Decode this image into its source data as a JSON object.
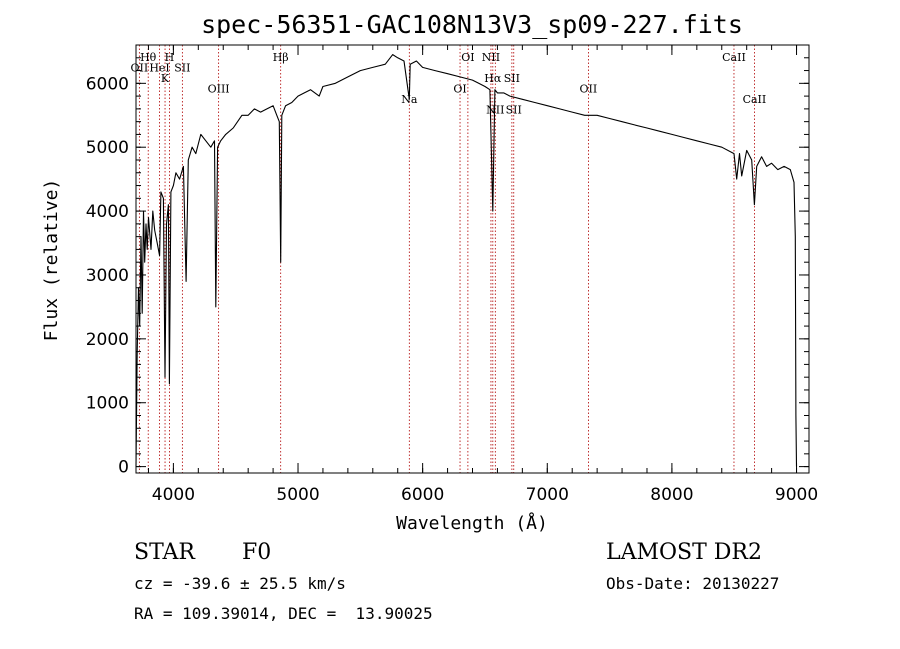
{
  "chart_data": {
    "type": "line",
    "title": "spec-56351-GAC108N13V3_sp09-227.fits",
    "xlabel": "Wavelength (Å)",
    "ylabel": "Flux (relative)",
    "xlim": [
      3700,
      9100
    ],
    "ylim": [
      -100,
      6600
    ],
    "x_ticks": [
      4000,
      5000,
      6000,
      7000,
      8000,
      9000
    ],
    "y_ticks": [
      0,
      1000,
      2000,
      3000,
      4000,
      5000,
      6000
    ],
    "minor_x_step": 200,
    "minor_y_step": 200,
    "line_color": "#000000",
    "marker_color": "#b00000",
    "series": [
      {
        "x": [
          3700,
          3710,
          3720,
          3730,
          3740,
          3750,
          3760,
          3770,
          3780,
          3790,
          3800,
          3820,
          3835,
          3850,
          3870,
          3889,
          3900,
          3920,
          3933,
          3945,
          3960,
          3968,
          3980,
          4000,
          4020,
          4050,
          4080,
          4102,
          4120,
          4150,
          4180,
          4220,
          4260,
          4300,
          4330,
          4340,
          4355,
          4380,
          4420,
          4480,
          4550,
          4600,
          4650,
          4700,
          4750,
          4800,
          4830,
          4850,
          4861,
          4870,
          4900,
          4950,
          5000,
          5050,
          5100,
          5170,
          5200,
          5300,
          5400,
          5500,
          5600,
          5700,
          5760,
          5800,
          5850,
          5893,
          5900,
          5950,
          6000,
          6100,
          6200,
          6300,
          6400,
          6450,
          6500,
          6540,
          6563,
          6580,
          6600,
          6650,
          6700,
          6800,
          6900,
          7000,
          7100,
          7200,
          7300,
          7400,
          7500,
          7600,
          7700,
          7800,
          7900,
          8000,
          8100,
          8200,
          8300,
          8400,
          8498,
          8520,
          8542,
          8560,
          8600,
          8640,
          8662,
          8680,
          8720,
          8760,
          8800,
          8850,
          8900,
          8950,
          8980,
          8990,
          8995,
          9000
        ],
        "y": [
          0,
          1800,
          2800,
          2200,
          3600,
          2400,
          4000,
          3200,
          3800,
          3400,
          3900,
          3400,
          4000,
          3700,
          3500,
          3300,
          4300,
          4200,
          1400,
          3800,
          4100,
          1300,
          4300,
          4400,
          4600,
          4500,
          4700,
          2900,
          4800,
          5000,
          4900,
          5200,
          5100,
          5000,
          5100,
          2500,
          5000,
          5100,
          5200,
          5300,
          5500,
          5500,
          5600,
          5550,
          5600,
          5650,
          5500,
          5400,
          3200,
          5500,
          5650,
          5700,
          5800,
          5850,
          5900,
          5800,
          5950,
          6000,
          6100,
          6200,
          6250,
          6300,
          6450,
          6400,
          6350,
          5750,
          6300,
          6350,
          6250,
          6200,
          6150,
          6100,
          6050,
          6000,
          5950,
          5900,
          4000,
          5900,
          5850,
          5850,
          5800,
          5750,
          5700,
          5650,
          5600,
          5550,
          5500,
          5500,
          5450,
          5400,
          5350,
          5300,
          5250,
          5200,
          5150,
          5100,
          5050,
          5000,
          4900,
          4500,
          4900,
          4550,
          4950,
          4800,
          4100,
          4700,
          4850,
          4700,
          4750,
          4650,
          4700,
          4650,
          4450,
          3600,
          800,
          0
        ]
      }
    ],
    "lines": [
      {
        "name": "Hθ",
        "x": 3798,
        "row": 0
      },
      {
        "name": "OII",
        "x": 3727,
        "row": 1
      },
      {
        "name": "H",
        "x": 3968,
        "row": 0
      },
      {
        "name": "K",
        "x": 3933,
        "row": 2
      },
      {
        "name": "HeI",
        "x": 3889,
        "row": 1
      },
      {
        "name": "SII",
        "x": 4072,
        "row": 1
      },
      {
        "name": "OIII",
        "x": 4363,
        "row": 3
      },
      {
        "name": "Hβ",
        "x": 4861,
        "row": 0
      },
      {
        "name": "Na",
        "x": 5893,
        "row": 4
      },
      {
        "name": "OI",
        "x": 6300,
        "row": 3
      },
      {
        "name": "OI",
        "x": 6363,
        "row": 0
      },
      {
        "name": "NII",
        "x": 6548,
        "row": 0
      },
      {
        "name": "Hα",
        "x": 6563,
        "row": 2
      },
      {
        "name": "NII",
        "x": 6583,
        "row": 5
      },
      {
        "name": "SII",
        "x": 6716,
        "row": 2
      },
      {
        "name": "SII",
        "x": 6731,
        "row": 5
      },
      {
        "name": "OII",
        "x": 7330,
        "row": 3
      },
      {
        "name": "CaII",
        "x": 8498,
        "row": 0
      },
      {
        "name": "CaII",
        "x": 8662,
        "row": 4
      }
    ]
  },
  "info": {
    "class": "STAR",
    "subclass": "F0",
    "survey": "LAMOST DR2",
    "cz": "cz = -39.6 ± 25.5 km/s",
    "obs_date": "Obs-Date: 20130227",
    "coords": "RA = 109.39014, DEC =  13.90025"
  }
}
